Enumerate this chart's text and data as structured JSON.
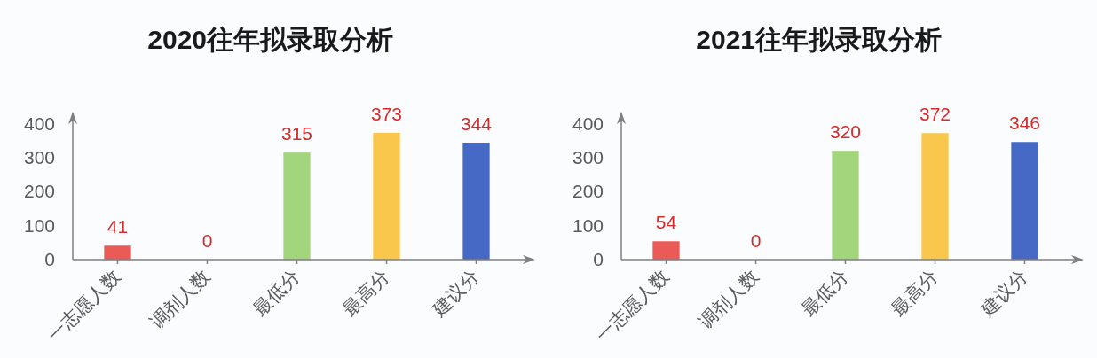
{
  "chart_data": [
    {
      "type": "bar",
      "title": "2020往年拟录取分析",
      "categories": [
        "一志愿人数",
        "调剂人数",
        "最低分",
        "最高分",
        "建议分"
      ],
      "values": [
        41,
        0,
        315,
        373,
        344
      ],
      "colors": [
        "#ea5a57",
        null,
        "#a3d57d",
        "#f9c74c",
        "#4569c5"
      ],
      "ylim": [
        0,
        430
      ],
      "yticks": [
        0,
        100,
        200,
        300,
        400
      ],
      "data_labels": true
    },
    {
      "type": "bar",
      "title": "2021往年拟录取分析",
      "categories": [
        "一志愿人数",
        "调剂人数",
        "最低分",
        "最高分",
        "建议分"
      ],
      "values": [
        54,
        0,
        320,
        372,
        346
      ],
      "colors": [
        "#ea5a57",
        null,
        "#a3d57d",
        "#f9c74c",
        "#4569c5"
      ],
      "ylim": [
        0,
        430
      ],
      "yticks": [
        0,
        100,
        200,
        300,
        400
      ],
      "data_labels": true
    }
  ]
}
